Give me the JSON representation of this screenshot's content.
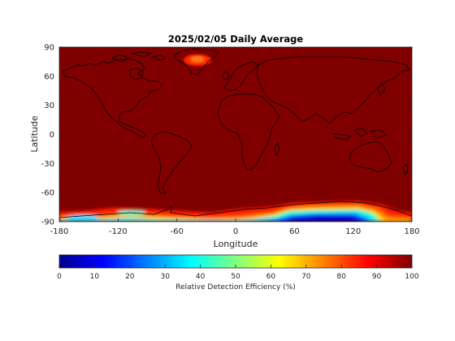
{
  "chart_data": {
    "type": "heatmap",
    "title": "2025/02/05 Daily Average",
    "xlabel": "Longitude",
    "ylabel": "Latitude",
    "xlim": [
      -180,
      180
    ],
    "ylim": [
      -90,
      90
    ],
    "x_ticks": [
      -180,
      -120,
      -60,
      0,
      60,
      120,
      180
    ],
    "y_ticks": [
      -90,
      -60,
      -30,
      0,
      30,
      60,
      90
    ],
    "colormap": "jet",
    "colorbar": {
      "label": "Relative Detection Efficiency (%)",
      "range": [
        0,
        100
      ],
      "ticks": [
        0,
        10,
        20,
        30,
        40,
        50,
        60,
        70,
        80,
        90,
        100
      ],
      "placement": "bottom"
    },
    "background_value": 100,
    "features": [
      {
        "region": "Greenland interior",
        "lon_center": -37,
        "lat_center": 74,
        "value": 85
      },
      {
        "region": "Antarctica (60E-150E)",
        "lon_range": [
          60,
          150
        ],
        "lat_range": [
          -90,
          -72
        ],
        "value": 10
      },
      {
        "region": "Antarctica (-120W to -90W)",
        "lon_range": [
          -120,
          -90
        ],
        "lat_range": [
          -90,
          -82
        ],
        "value": 38
      },
      {
        "region": "Antarctica (-90W to 60E)",
        "lon_range": [
          -90,
          60
        ],
        "lat_range": [
          -90,
          -82
        ],
        "value": 55
      },
      {
        "region": "Antarctic coast fringe",
        "lat_range": [
          -84,
          -76
        ],
        "value": 88
      }
    ]
  }
}
